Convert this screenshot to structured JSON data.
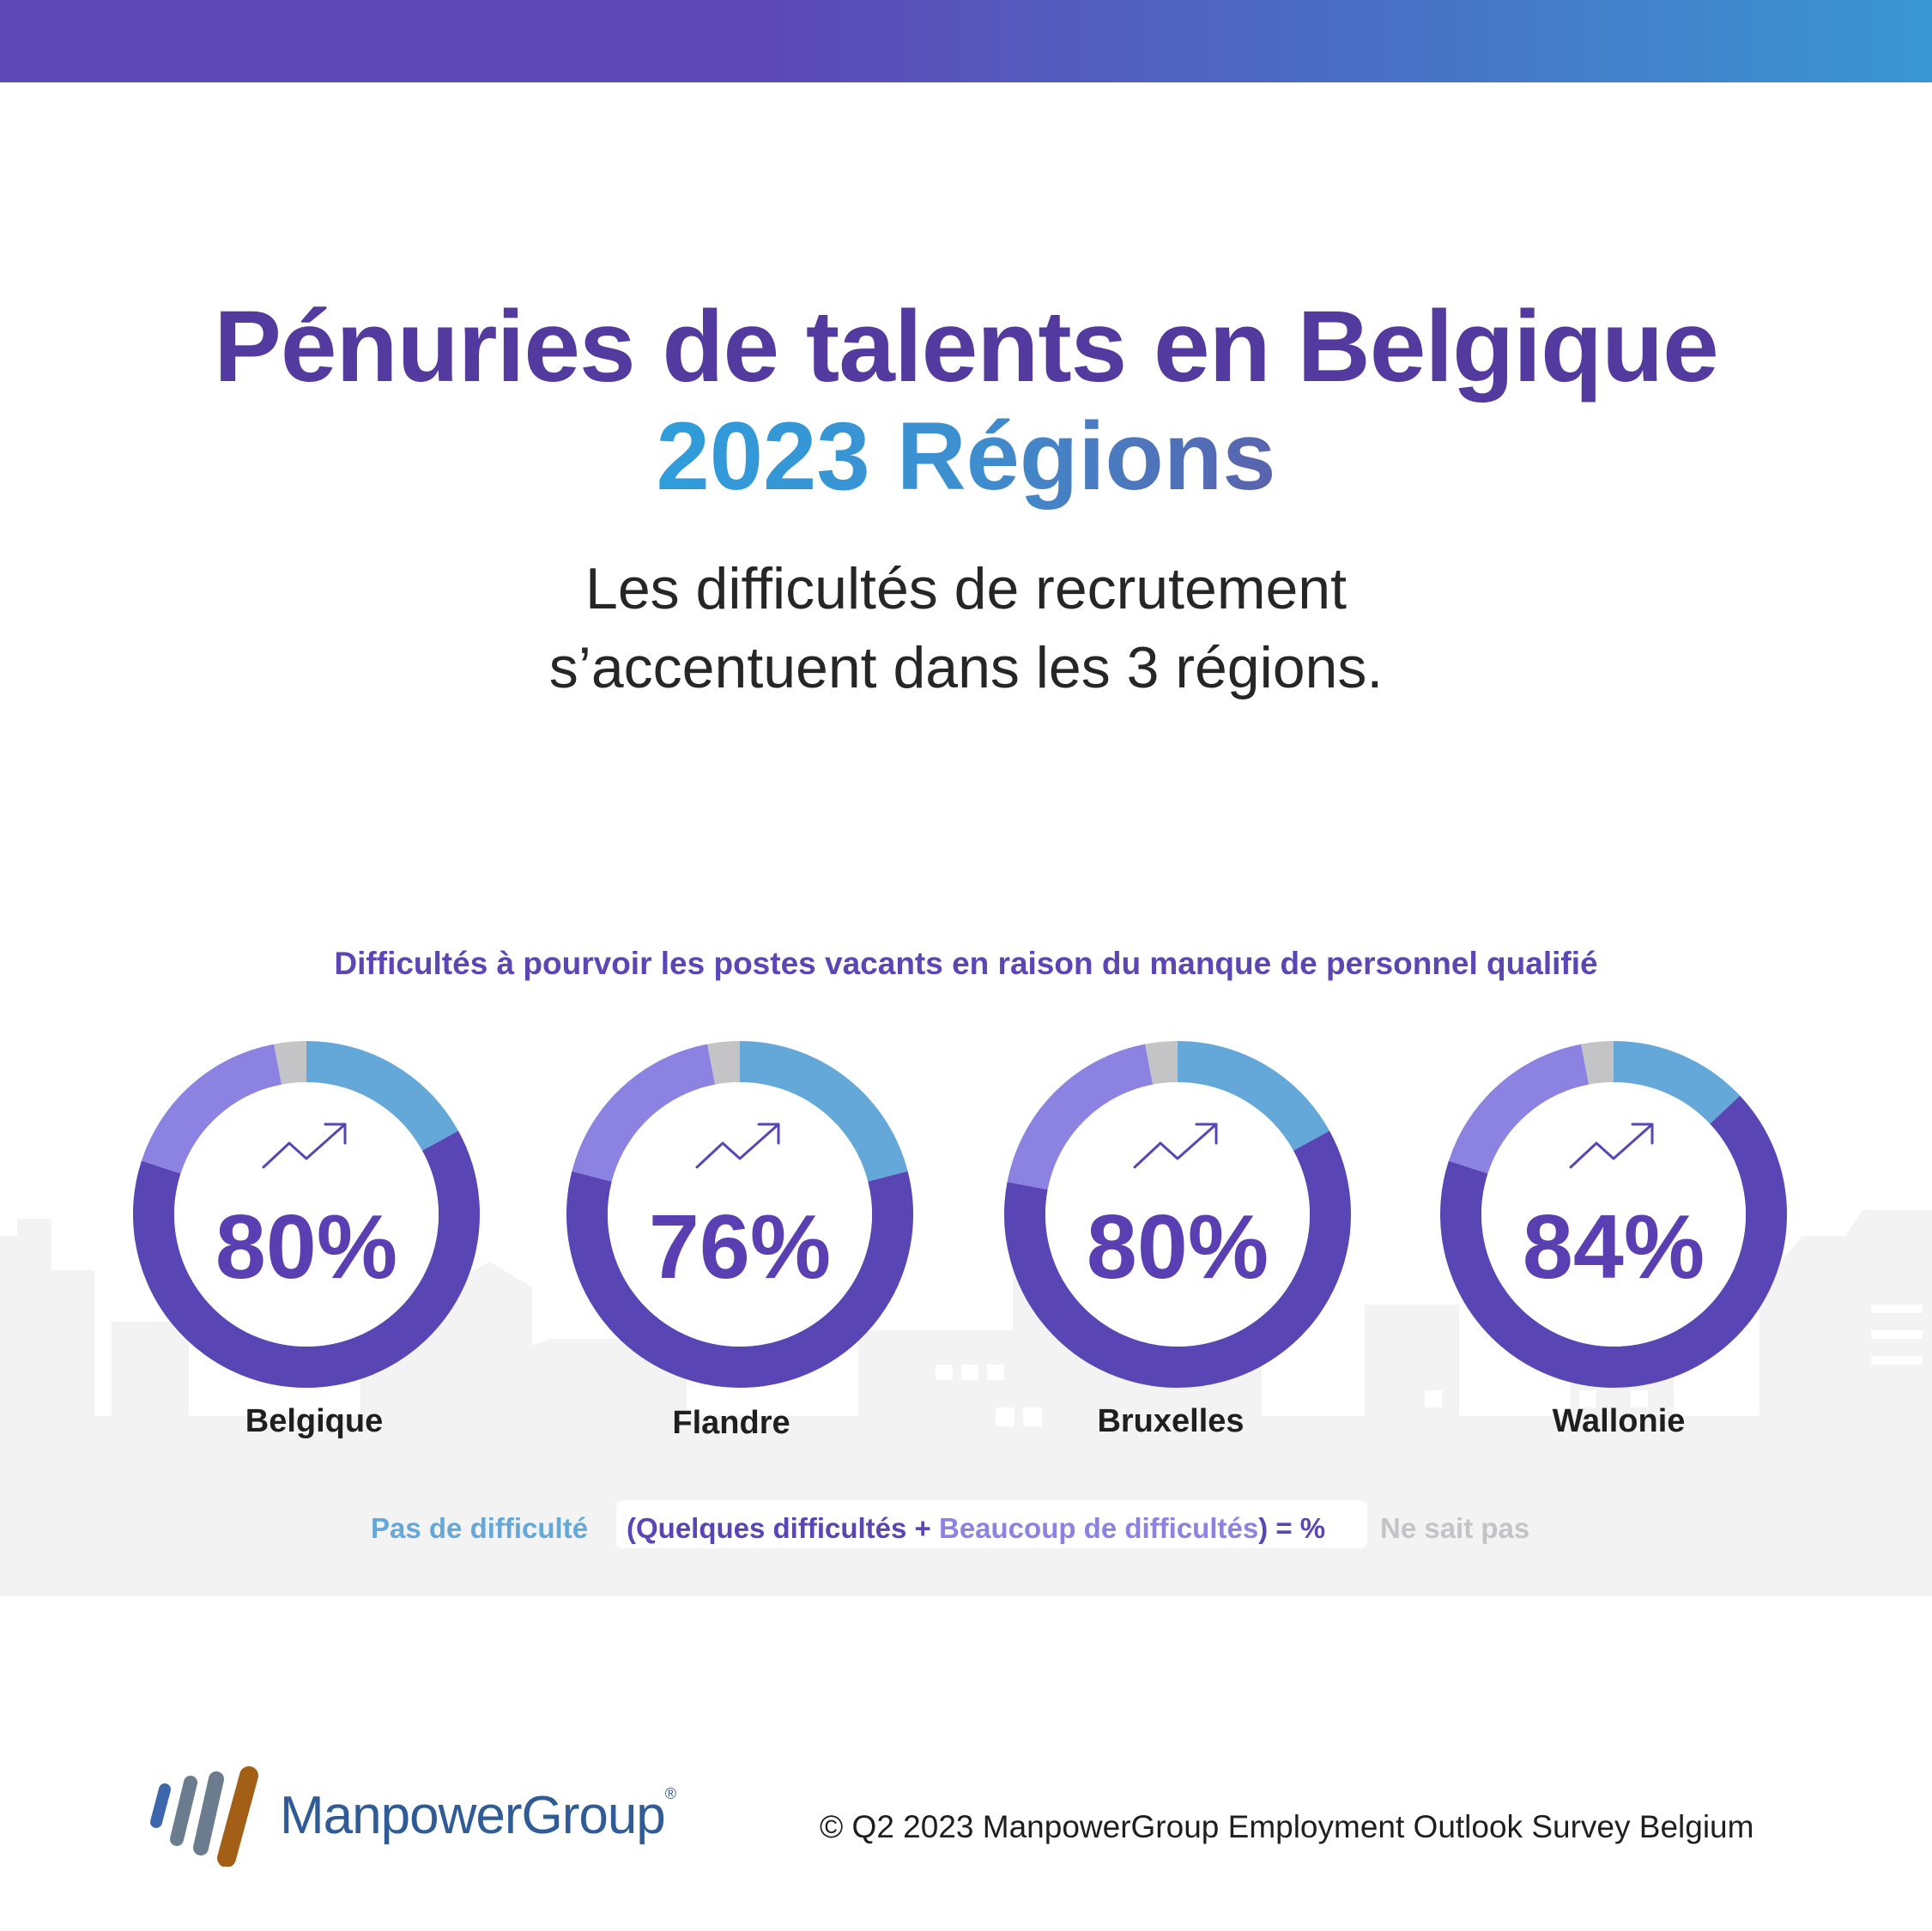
{
  "header": {
    "title_line1": "Pénuries de talents en Belgique",
    "title_line2": "2023 Régions",
    "subtitle_line1": "Les difficultés de recrutement",
    "subtitle_line2": "s’accentuent dans les 3 régions."
  },
  "colors": {
    "no_difficulty": "#64a8d9",
    "some_difficulty": "#5a45b5",
    "many_difficulties": "#8b82e2",
    "dont_know": "#c4c4c6"
  },
  "chart_data": {
    "type": "donut",
    "title": "Difficultés à pourvoir les postes vacants en raison du manque de personnel qualifié",
    "categories": [
      "Belgique",
      "Flandre",
      "Bruxelles",
      "Wallonie"
    ],
    "series": [
      {
        "name": "Pas de difficulté",
        "values": [
          17,
          21,
          17,
          13
        ]
      },
      {
        "name": "Quelques difficultés",
        "values": [
          63,
          58,
          61,
          67
        ]
      },
      {
        "name": "Beaucoup de difficultés",
        "values": [
          17,
          18,
          19,
          17
        ]
      },
      {
        "name": "Ne sait pas",
        "values": [
          3,
          3,
          3,
          3
        ]
      }
    ],
    "labels": [
      "80%",
      "76%",
      "80%",
      "84%"
    ],
    "trend_icon": "trend-up-arrow-icon"
  },
  "legend": {
    "no_difficulty": "Pas de difficulté",
    "formula_open": "(Quelques difficultés + ",
    "many": "Beaucoup de difficultés",
    "formula_close": ") = %",
    "dont_know": "Ne sait pas"
  },
  "footer": {
    "brand": "ManpowerGroup",
    "registered": "®",
    "copyright": "© Q2 2023 ManpowerGroup Employment Outlook Survey Belgium"
  }
}
